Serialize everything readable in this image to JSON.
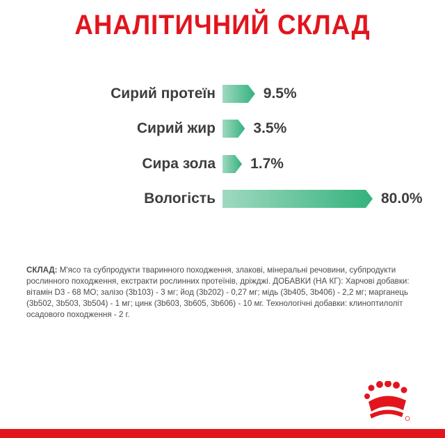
{
  "title": "АНАЛІТИЧНИЙ СКЛАД",
  "colors": {
    "title": "#e2151d",
    "bar_light": "#9fd9c0",
    "bar_dark": "#34b27d",
    "text": "#3d3d3d",
    "brand_red": "#e2151d"
  },
  "nutrients": [
    {
      "label": "Сирий протеїн",
      "value_text": "9.5%",
      "percent": 9.5
    },
    {
      "label": "Сирий жир",
      "value_text": "3.5%",
      "percent": 3.5
    },
    {
      "label": "Сира зола",
      "value_text": "1.7%",
      "percent": 1.7
    },
    {
      "label": "Вологість",
      "value_text": "80.0%",
      "percent": 80.0
    }
  ],
  "composition": {
    "label": "СКЛАД:",
    "text": " М'ясо та субпродукти тваринного походження, злакові, мінеральні речовини, субпродукти рослинного походження, екстракти рослинних протеїнів, дріжджі. ДОБАВКИ (НА КГ): Харчові добавки: вітамін D3 - 68 МО; залізо (3b103) - 3 мг; йод (3b202) - 0,27 мг; мідь (3b405, 3b406) - 2,2 мг; марганець (3b502, 3b503, 3b504) - 1 мг; цинк (3b603, 3b605, 3b606) - 10 мг. Технологічні добавки: клиноптилоліт осадового походження - 2 г."
  },
  "logo": {
    "icon": "royal-canin-crown-icon"
  }
}
